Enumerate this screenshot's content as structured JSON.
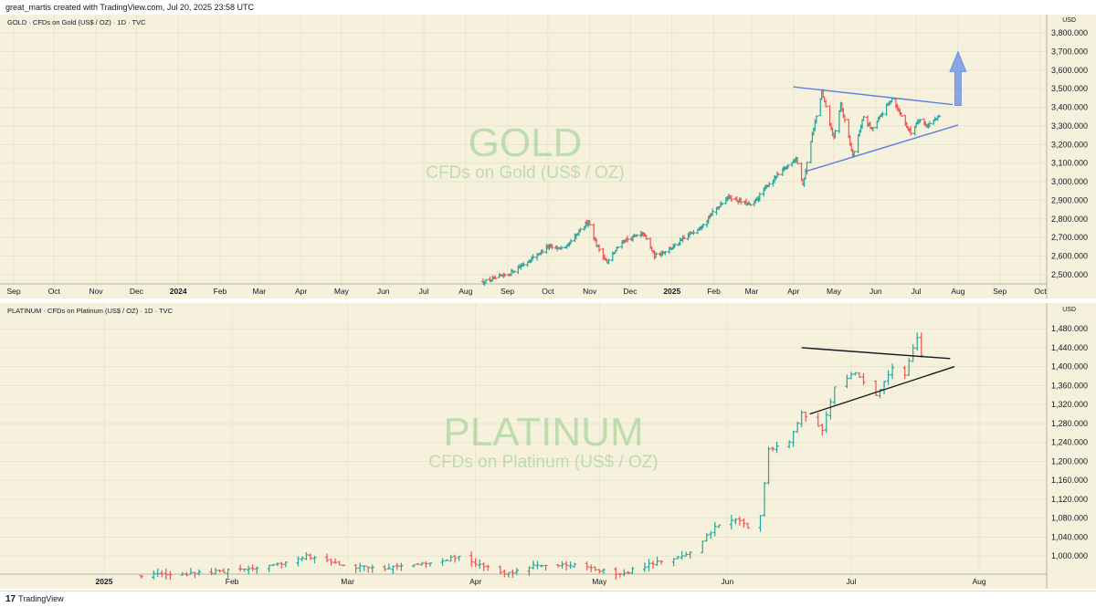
{
  "header": {
    "attribution": "great_martis created with TradingView.com, Jul 20, 2025 23:58 UTC"
  },
  "footer": {
    "brand_mark": "17",
    "brand_name": "TradingView"
  },
  "chart_data": [
    {
      "type": "ohlc",
      "symbol_label": "GOLD · CFDs on Gold (US$ / OZ) · 1D · TVC",
      "currency": "USD",
      "watermark_title": "GOLD",
      "watermark_subtitle": "CFDs on Gold (US$ / OZ)",
      "y_ticks": [
        "3,800.000",
        "3,700.000",
        "3,600.000",
        "3,500.000",
        "3,400.000",
        "3,300.000",
        "3,200.000",
        "3,100.000",
        "3,000.000",
        "2,900.000",
        "2,800.000",
        "2,700.000",
        "2,600.000",
        "2,500.000"
      ],
      "x_ticks": [
        "Sep",
        "Oct",
        "Nov",
        "Dec",
        "2024",
        "Feb",
        "Mar",
        "Apr",
        "May",
        "Jun",
        "Jul",
        "Aug",
        "Sep",
        "Oct",
        "Nov",
        "Dec",
        "2025",
        "Feb",
        "Mar",
        "Apr",
        "May",
        "Jun",
        "Jul",
        "Aug",
        "Sep",
        "Oct"
      ],
      "ylim": [
        2470,
        3830
      ],
      "price_path": [
        [
          "2024-08-14",
          2460
        ],
        [
          "2024-09-01",
          2500
        ],
        [
          "2024-09-18",
          2580
        ],
        [
          "2024-10-01",
          2650
        ],
        [
          "2024-10-14",
          2640
        ],
        [
          "2024-10-31",
          2790
        ],
        [
          "2024-11-06",
          2660
        ],
        [
          "2024-11-14",
          2565
        ],
        [
          "2024-11-25",
          2680
        ],
        [
          "2024-12-11",
          2720
        ],
        [
          "2024-12-19",
          2600
        ],
        [
          "2025-01-02",
          2650
        ],
        [
          "2025-01-22",
          2760
        ],
        [
          "2025-02-11",
          2920
        ],
        [
          "2025-03-01",
          2870
        ],
        [
          "2025-03-14",
          2990
        ],
        [
          "2025-04-03",
          3130
        ],
        [
          "2025-04-08",
          2980
        ],
        [
          "2025-04-14",
          3220
        ],
        [
          "2025-04-22",
          3480
        ],
        [
          "2025-05-01",
          3230
        ],
        [
          "2025-05-06",
          3420
        ],
        [
          "2025-05-15",
          3140
        ],
        [
          "2025-05-23",
          3350
        ],
        [
          "2025-05-29",
          3280
        ],
        [
          "2025-06-13",
          3450
        ],
        [
          "2025-06-27",
          3260
        ],
        [
          "2025-07-03",
          3340
        ],
        [
          "2025-07-09",
          3300
        ],
        [
          "2025-07-18",
          3350
        ]
      ],
      "annotations": {
        "upper_trendline": [
          [
            "2025-04-01",
            3510
          ],
          [
            "2025-07-28",
            3415
          ]
        ],
        "lower_trendline": [
          [
            "2025-04-10",
            3055
          ],
          [
            "2025-08-01",
            3305
          ]
        ],
        "arrow": {
          "direction": "up",
          "from": [
            "2025-08-01",
            3410
          ],
          "to": [
            "2025-08-01",
            3700
          ],
          "color": "#7b9ee6"
        },
        "trendline_color": "#5b7fe0"
      },
      "colors": {
        "up": "#26a69a",
        "down": "#ef5350"
      }
    },
    {
      "type": "ohlc",
      "symbol_label": "PLATINUM · CFDs on Platinum (US$ / OZ) · 1D · TVC",
      "currency": "USD",
      "watermark_title": "PLATINUM",
      "watermark_subtitle": "CFDs on Platinum (US$ / OZ)",
      "y_ticks": [
        "1,480.000",
        "1,440.000",
        "1,400.000",
        "1,360.000",
        "1,320.000",
        "1,280.000",
        "1,240.000",
        "1,200.000",
        "1,160.000",
        "1,120.000",
        "1,080.000",
        "1,040.000",
        "1,000.000"
      ],
      "x_ticks": [
        "2025",
        "Feb",
        "Mar",
        "Apr",
        "May",
        "Jun",
        "Jul",
        "Aug"
      ],
      "ylim": [
        960,
        1515
      ],
      "price_path": [
        [
          "2025-01-10",
          960
        ],
        [
          "2025-01-22",
          962
        ],
        [
          "2025-02-01",
          970
        ],
        [
          "2025-02-12",
          982
        ],
        [
          "2025-02-19",
          1000
        ],
        [
          "2025-03-01",
          978
        ],
        [
          "2025-03-10",
          975
        ],
        [
          "2025-03-24",
          990
        ],
        [
          "2025-03-28",
          1000
        ],
        [
          "2025-04-08",
          960
        ],
        [
          "2025-04-15",
          978
        ],
        [
          "2025-04-25",
          980
        ],
        [
          "2025-05-06",
          962
        ],
        [
          "2025-05-15",
          988
        ],
        [
          "2025-05-22",
          1000
        ],
        [
          "2025-05-29",
          1060
        ],
        [
          "2025-06-03",
          1080
        ],
        [
          "2025-06-06",
          1060
        ],
        [
          "2025-06-09",
          1082
        ],
        [
          "2025-06-11",
          1225
        ],
        [
          "2025-06-16",
          1240
        ],
        [
          "2025-06-19",
          1300
        ],
        [
          "2025-06-24",
          1265
        ],
        [
          "2025-06-27",
          1360
        ],
        [
          "2025-07-02",
          1390
        ],
        [
          "2025-07-07",
          1340
        ],
        [
          "2025-07-11",
          1400
        ],
        [
          "2025-07-14",
          1385
        ],
        [
          "2025-07-16",
          1440
        ],
        [
          "2025-07-17",
          1460
        ],
        [
          "2025-07-18",
          1425
        ]
      ],
      "annotations": {
        "upper_trendline": [
          [
            "2025-06-19",
            1440
          ],
          [
            "2025-07-25",
            1417
          ]
        ],
        "lower_trendline": [
          [
            "2025-06-21",
            1300
          ],
          [
            "2025-07-26",
            1400
          ]
        ],
        "trendline_color": "#131722"
      },
      "colors": {
        "up": "#26a69a",
        "down": "#ef5350"
      }
    }
  ]
}
